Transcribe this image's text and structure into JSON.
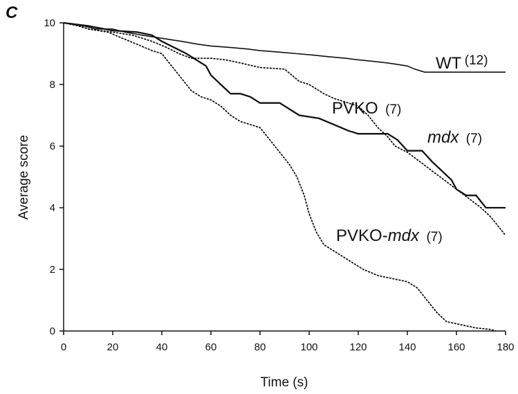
{
  "panel_label": "C",
  "chart_data": {
    "type": "line",
    "title": "",
    "xlabel": "Time (s)",
    "ylabel": "Average score",
    "xlim": [
      0,
      180
    ],
    "ylim": [
      0,
      10
    ],
    "x_ticks": [
      0,
      20,
      40,
      60,
      80,
      100,
      120,
      140,
      160,
      180
    ],
    "y_ticks": [
      0,
      2,
      4,
      6,
      8,
      10
    ],
    "grid": false,
    "legend": "none (series labeled inline)",
    "series": [
      {
        "name": "WT",
        "n_label": "(12)",
        "style": "solid",
        "stroke_width": 1.6,
        "points": [
          [
            0,
            10
          ],
          [
            8,
            9.9
          ],
          [
            13,
            9.8
          ],
          [
            20,
            9.8
          ],
          [
            25,
            9.7
          ],
          [
            32,
            9.6
          ],
          [
            40,
            9.5
          ],
          [
            48,
            9.4
          ],
          [
            55,
            9.3
          ],
          [
            60,
            9.25
          ],
          [
            68,
            9.2
          ],
          [
            75,
            9.15
          ],
          [
            80,
            9.1
          ],
          [
            88,
            9.05
          ],
          [
            95,
            9
          ],
          [
            102,
            8.95
          ],
          [
            108,
            8.9
          ],
          [
            115,
            8.85
          ],
          [
            120,
            8.8
          ],
          [
            126,
            8.75
          ],
          [
            132,
            8.7
          ],
          [
            136,
            8.65
          ],
          [
            140,
            8.6
          ],
          [
            143,
            8.5
          ],
          [
            147,
            8.4
          ],
          [
            180,
            8.4
          ]
        ]
      },
      {
        "name": "PVKO",
        "n_label": "(7)",
        "style": "dotted",
        "stroke_width": 1.8,
        "points": [
          [
            0,
            10
          ],
          [
            6,
            9.9
          ],
          [
            10,
            9.8
          ],
          [
            20,
            9.7
          ],
          [
            28,
            9.6
          ],
          [
            36,
            9.4
          ],
          [
            42,
            9.2
          ],
          [
            47,
            9
          ],
          [
            52,
            8.85
          ],
          [
            60,
            8.85
          ],
          [
            66,
            8.8
          ],
          [
            72,
            8.7
          ],
          [
            80,
            8.55
          ],
          [
            90,
            8.5
          ],
          [
            96,
            8.1
          ],
          [
            100,
            8
          ],
          [
            106,
            7.7
          ],
          [
            110,
            7.55
          ],
          [
            120,
            7.3
          ],
          [
            124,
            7
          ],
          [
            128,
            6.6
          ],
          [
            132,
            6.3
          ],
          [
            135,
            6
          ],
          [
            140,
            5.8
          ],
          [
            145,
            5.5
          ],
          [
            150,
            5.2
          ],
          [
            155,
            4.9
          ],
          [
            160,
            4.6
          ],
          [
            165,
            4.3
          ],
          [
            170,
            4
          ],
          [
            174,
            3.7
          ],
          [
            177,
            3.4
          ],
          [
            180,
            3.1
          ]
        ]
      },
      {
        "name": "mdx",
        "n_label": "(7)",
        "style": "solid",
        "stroke_width": 2.3,
        "points": [
          [
            0,
            10
          ],
          [
            10,
            9.9
          ],
          [
            20,
            9.75
          ],
          [
            30,
            9.7
          ],
          [
            36,
            9.6
          ],
          [
            40,
            9.4
          ],
          [
            45,
            9.2
          ],
          [
            50,
            9
          ],
          [
            54,
            8.8
          ],
          [
            58,
            8.6
          ],
          [
            60,
            8.3
          ],
          [
            64,
            8
          ],
          [
            68,
            7.7
          ],
          [
            72,
            7.7
          ],
          [
            76,
            7.6
          ],
          [
            80,
            7.4
          ],
          [
            88,
            7.4
          ],
          [
            92,
            7.2
          ],
          [
            96,
            7
          ],
          [
            104,
            6.9
          ],
          [
            110,
            6.7
          ],
          [
            116,
            6.5
          ],
          [
            120,
            6.4
          ],
          [
            132,
            6.4
          ],
          [
            136,
            6.2
          ],
          [
            140,
            5.85
          ],
          [
            146,
            5.85
          ],
          [
            150,
            5.5
          ],
          [
            154,
            5.2
          ],
          [
            158,
            4.9
          ],
          [
            160,
            4.6
          ],
          [
            164,
            4.4
          ],
          [
            168,
            4.4
          ],
          [
            170,
            4.2
          ],
          [
            172,
            4
          ],
          [
            180,
            4
          ]
        ]
      },
      {
        "name": "PVKO-mdx",
        "n_label": "(7)",
        "style": "dotted",
        "stroke_width": 1.8,
        "points": [
          [
            0,
            10
          ],
          [
            6,
            9.9
          ],
          [
            10,
            9.8
          ],
          [
            18,
            9.7
          ],
          [
            24,
            9.5
          ],
          [
            30,
            9.3
          ],
          [
            36,
            9.1
          ],
          [
            40,
            9
          ],
          [
            44,
            8.6
          ],
          [
            48,
            8.2
          ],
          [
            52,
            7.8
          ],
          [
            56,
            7.6
          ],
          [
            60,
            7.5
          ],
          [
            64,
            7.3
          ],
          [
            68,
            7
          ],
          [
            72,
            6.8
          ],
          [
            76,
            6.7
          ],
          [
            80,
            6.6
          ],
          [
            84,
            6.2
          ],
          [
            88,
            5.8
          ],
          [
            92,
            5.4
          ],
          [
            95,
            5
          ],
          [
            98,
            4.4
          ],
          [
            100,
            3.8
          ],
          [
            103,
            3.2
          ],
          [
            106,
            2.8
          ],
          [
            110,
            2.6
          ],
          [
            114,
            2.4
          ],
          [
            118,
            2.2
          ],
          [
            122,
            2
          ],
          [
            128,
            1.8
          ],
          [
            134,
            1.7
          ],
          [
            140,
            1.6
          ],
          [
            144,
            1.4
          ],
          [
            148,
            1
          ],
          [
            152,
            0.6
          ],
          [
            156,
            0.3
          ],
          [
            162,
            0.2
          ],
          [
            168,
            0.1
          ],
          [
            174,
            0.05
          ],
          [
            176,
            0
          ]
        ]
      }
    ]
  }
}
